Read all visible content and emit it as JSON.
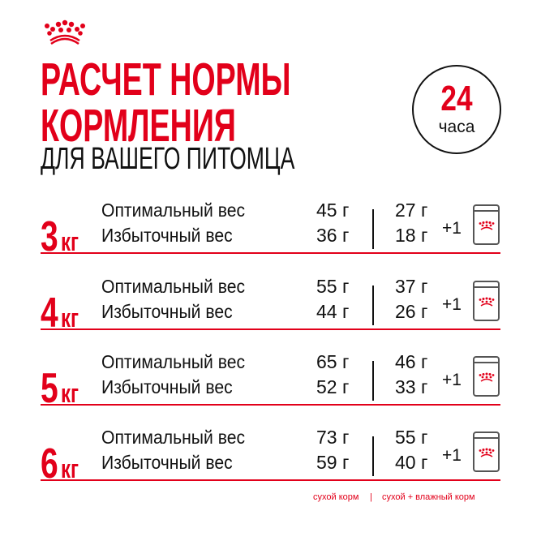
{
  "brand": {
    "logo": "crown-logo",
    "accent": "#e2001a"
  },
  "title": {
    "line1": "РАСЧЕТ НОРМЫ",
    "line2": "КОРМЛЕНИЯ",
    "line3": "ДЛЯ ВАШЕГО ПИТОМЦА"
  },
  "badge": {
    "number": "24",
    "unit": "часа"
  },
  "rows": [
    {
      "weight": "3",
      "unit": "кг",
      "opt_label": "Оптимальный вес",
      "over_label": "Избыточный вес",
      "opt_dry": "45 г",
      "over_dry": "36 г",
      "opt_mix": "27 г",
      "over_mix": "18 г",
      "plus": "+1"
    },
    {
      "weight": "4",
      "unit": "кг",
      "opt_label": "Оптимальный вес",
      "over_label": "Избыточный вес",
      "opt_dry": "55 г",
      "over_dry": "44 г",
      "opt_mix": "37 г",
      "over_mix": "26 г",
      "plus": "+1"
    },
    {
      "weight": "5",
      "unit": "кг",
      "opt_label": "Оптимальный вес",
      "over_label": "Избыточный вес",
      "opt_dry": "65 г",
      "over_dry": "52 г",
      "opt_mix": "46 г",
      "over_mix": "33 г",
      "plus": "+1"
    },
    {
      "weight": "6",
      "unit": "кг",
      "opt_label": "Оптимальный вес",
      "over_label": "Избыточный вес",
      "opt_dry": "73 г",
      "over_dry": "59 г",
      "opt_mix": "55 г",
      "over_mix": "40 г",
      "plus": "+1"
    }
  ],
  "footer": {
    "dry": "сухой корм",
    "separator": "|",
    "mix": "сухой + влажный корм"
  }
}
